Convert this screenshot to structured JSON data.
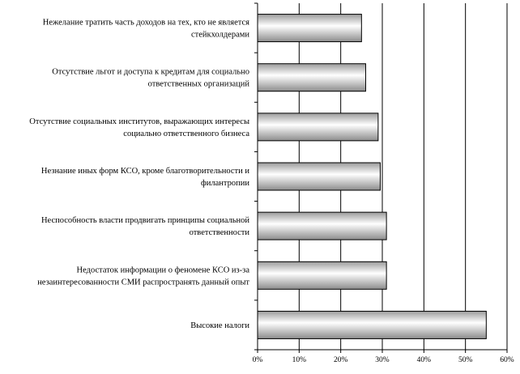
{
  "chart_data": {
    "type": "bar",
    "orientation": "horizontal",
    "categories": [
      [
        "Нежелание тратить часть доходов на тех, кто не является",
        "стейкхолдерами"
      ],
      [
        "Отсутствие льгот и доступа к кредитам для социально",
        "ответственных организаций"
      ],
      [
        "Отсутствие социальных институтов, выражающих интересы",
        "социально ответственного бизнеса"
      ],
      [
        "Незнание иных форм КСО, кроме благотворительности и",
        "филантропии"
      ],
      [
        "Неспособность власти продвигать принципы социальной",
        "ответственности"
      ],
      [
        "Недостаток информации о феномене КСО из-за",
        "незаинтересованности СМИ распространять данный опыт"
      ],
      [
        "Высокие налоги"
      ]
    ],
    "values": [
      25,
      26,
      29,
      29.5,
      31,
      31,
      55
    ],
    "unit": "%",
    "xlim": [
      0,
      60
    ],
    "x_ticks": [
      "0%",
      "10%",
      "20%",
      "30%",
      "40%",
      "50%",
      "60%"
    ],
    "grid": "vertical",
    "legend": "none",
    "colors": {
      "bar_gradient_start": "#9a9a9a",
      "bar_gradient_mid": "#ffffff",
      "bar_gradient_end": "#8c8c8c",
      "bar_border": "#000000",
      "grid": "#000000"
    }
  }
}
